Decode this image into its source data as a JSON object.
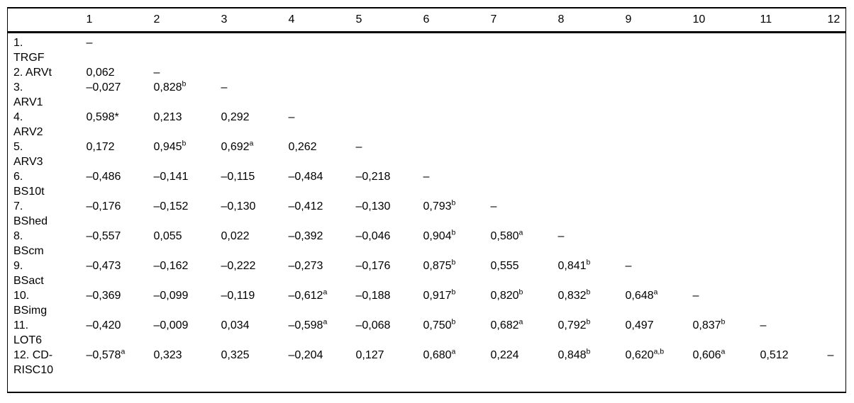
{
  "colors": {
    "background": "#ffffff",
    "text": "#000000",
    "border": "#000000"
  },
  "table": {
    "empty_mark": "–",
    "header": {
      "corner": "",
      "columns": [
        "1",
        "2",
        "3",
        "4",
        "5",
        "6",
        "7",
        "8",
        "9",
        "10",
        "11",
        "12"
      ]
    },
    "rows": [
      {
        "label_lines": [
          "1.",
          "TRGF"
        ],
        "cells": [
          {
            "v": "–"
          }
        ]
      },
      {
        "label_lines": [
          "2. ARVt"
        ],
        "cells": [
          {
            "v": "0,062"
          },
          {
            "v": "–"
          }
        ]
      },
      {
        "label_lines": [
          "3.",
          "ARV1"
        ],
        "cells": [
          {
            "v": "–0,027"
          },
          {
            "v": "0,828",
            "sup": "b"
          },
          {
            "v": "–"
          }
        ]
      },
      {
        "label_lines": [
          "4.",
          "ARV2"
        ],
        "cells": [
          {
            "v": "0,598*"
          },
          {
            "v": "0,213"
          },
          {
            "v": "0,292"
          },
          {
            "v": "–"
          }
        ]
      },
      {
        "label_lines": [
          "5.",
          "ARV3"
        ],
        "cells": [
          {
            "v": "0,172"
          },
          {
            "v": "0,945",
            "sup": "b"
          },
          {
            "v": "0,692",
            "sup": "a"
          },
          {
            "v": "0,262"
          },
          {
            "v": "–"
          }
        ]
      },
      {
        "label_lines": [
          "6.",
          "BS10t"
        ],
        "cells": [
          {
            "v": "–0,486"
          },
          {
            "v": "–0,141"
          },
          {
            "v": "–0,115"
          },
          {
            "v": "–0,484"
          },
          {
            "v": "–0,218"
          },
          {
            "v": "–"
          }
        ]
      },
      {
        "label_lines": [
          "7.",
          "BShed"
        ],
        "cells": [
          {
            "v": "–0,176"
          },
          {
            "v": "–0,152"
          },
          {
            "v": "–0,130"
          },
          {
            "v": "–0,412"
          },
          {
            "v": "–0,130"
          },
          {
            "v": "0,793",
            "sup": "b"
          },
          {
            "v": "–"
          }
        ]
      },
      {
        "label_lines": [
          "8.",
          "BScm"
        ],
        "cells": [
          {
            "v": "–0,557"
          },
          {
            "v": "0,055"
          },
          {
            "v": "0,022"
          },
          {
            "v": "–0,392"
          },
          {
            "v": "–0,046"
          },
          {
            "v": "0,904",
            "sup": "b"
          },
          {
            "v": "0,580",
            "sup": "a"
          },
          {
            "v": "–"
          }
        ]
      },
      {
        "label_lines": [
          "9.",
          "BSact"
        ],
        "cells": [
          {
            "v": "–0,473"
          },
          {
            "v": "–0,162"
          },
          {
            "v": "–0,222"
          },
          {
            "v": "–0,273"
          },
          {
            "v": "–0,176"
          },
          {
            "v": "0,875",
            "sup": "b"
          },
          {
            "v": "0,555"
          },
          {
            "v": "0,841",
            "sup": "b"
          },
          {
            "v": "–"
          }
        ]
      },
      {
        "label_lines": [
          "10.",
          "BSimg"
        ],
        "cells": [
          {
            "v": "–0,369"
          },
          {
            "v": "–0,099"
          },
          {
            "v": "–0,119"
          },
          {
            "v": "–0,612",
            "sup": "a"
          },
          {
            "v": "–0,188"
          },
          {
            "v": "0,917",
            "sup": "b"
          },
          {
            "v": "0,820",
            "sup": "b"
          },
          {
            "v": "0,832",
            "sup": "b"
          },
          {
            "v": "0,648",
            "sup": "a"
          },
          {
            "v": "–"
          }
        ]
      },
      {
        "label_lines": [
          "11.",
          "LOT6"
        ],
        "cells": [
          {
            "v": "–0,420"
          },
          {
            "v": "–0,009"
          },
          {
            "v": "0,034"
          },
          {
            "v": "–0,598",
            "sup": "a"
          },
          {
            "v": "–0,068"
          },
          {
            "v": "0,750",
            "sup": "b"
          },
          {
            "v": "0,682",
            "sup": "a"
          },
          {
            "v": "0,792",
            "sup": "b"
          },
          {
            "v": "0,497"
          },
          {
            "v": "0,837",
            "sup": "b"
          },
          {
            "v": "–"
          }
        ]
      },
      {
        "label_lines": [
          "12. CD-",
          "RISC10"
        ],
        "cells": [
          {
            "v": "–0,578",
            "sup": "a"
          },
          {
            "v": "0,323"
          },
          {
            "v": "0,325"
          },
          {
            "v": "–0,204"
          },
          {
            "v": "0,127"
          },
          {
            "v": "0,680",
            "sup": "a"
          },
          {
            "v": "0,224"
          },
          {
            "v": "0,848",
            "sup": "b"
          },
          {
            "v": "0,620",
            "sup": "a,b"
          },
          {
            "v": "0,606",
            "sup": "a"
          },
          {
            "v": "0,512"
          },
          {
            "v": "–"
          }
        ]
      }
    ]
  }
}
